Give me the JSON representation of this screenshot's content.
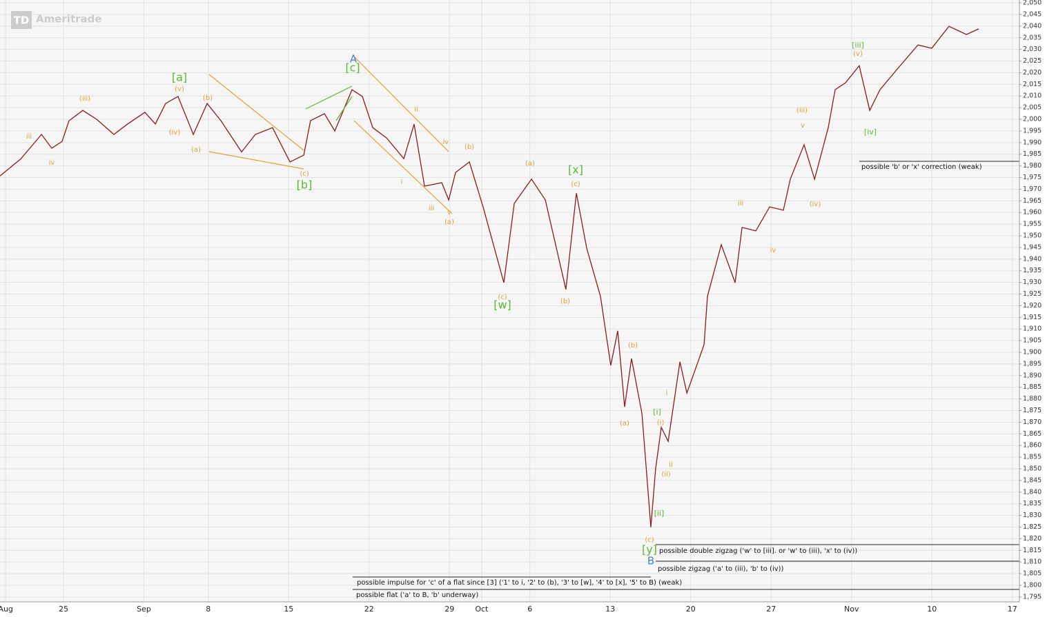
{
  "chart_data": {
    "type": "line",
    "logo": {
      "mark": "TD",
      "name": "Ameritrade"
    },
    "color": "#8b1a1a",
    "x": [
      -3.95,
      -2.66,
      -1.37,
      -0.73,
      -0.09,
      0.34,
      1.2,
      2.06,
      3.13,
      3.99,
      5.06,
      5.71,
      6.35,
      7.12,
      8.07,
      8.93,
      9.79,
      11.07,
      11.93,
      13.0,
      14.08,
      14.94,
      15.36,
      16.22,
      16.87,
      17.94,
      18.58,
      19.23,
      20.09,
      21.16,
      21.8,
      22.45,
      23.52,
      23.95,
      24.38,
      25.24,
      26.09,
      27.38,
      28.03,
      29.1,
      29.96,
      31.24,
      31.89,
      32.53,
      33.39,
      34.03,
      34.46,
      34.89,
      35.32,
      35.97,
      36.52,
      36.82,
      37.17,
      37.6,
      38.33,
      38.76,
      39.83,
      40.04,
      40.9,
      41.76,
      42.19,
      43.05,
      43.91,
      44.76,
      45.19,
      46.05,
      46.7,
      47.55,
      47.98,
      48.63,
      49.48,
      50.13,
      50.77,
      51.85,
      53.13,
      53.99,
      55.06,
      56.14,
      56.91
    ],
    "values": [
      1975.7,
      1983,
      1993.5,
      1987.6,
      1990.5,
      1999.4,
      2003.8,
      2000,
      1993.5,
      1998,
      2003,
      1998,
      2006.8,
      2009.8,
      1993.5,
      2006.8,
      1999.4,
      1986,
      1993.5,
      1996.4,
      1981.7,
      1984.6,
      1999.4,
      2002.4,
      1995,
      2012.7,
      2009.8,
      1996.4,
      1992,
      1983.1,
      1997.9,
      1971.3,
      1972.8,
      1965.4,
      1977.2,
      1981.7,
      1962.4,
      1929.9,
      1963.9,
      1974.3,
      1965.4,
      1927,
      1968.3,
      1944.7,
      1924,
      1894.4,
      1909.2,
      1876.6,
      1897.3,
      1873.7,
      1824.9,
      1850,
      1867.8,
      1861.8,
      1895.9,
      1882.5,
      1903.3,
      1924,
      1946.2,
      1929.9,
      1953.6,
      1952.1,
      1962.4,
      1961,
      1974.3,
      1989.1,
      1974.3,
      1996.4,
      2012.7,
      2015.7,
      2023,
      2003.8,
      2012.7,
      2021.6,
      2031.9,
      2030.5,
      2039.9,
      2036.4,
      2038.8
    ],
    "xlim": [
      -3.95,
      59.44
    ],
    "ylim": [
      1792.9,
      2051.2
    ],
    "grid": true,
    "xticks": [
      {
        "value": -3.6,
        "label": "Aug"
      },
      {
        "value": 0,
        "label": "25"
      },
      {
        "value": 5,
        "label": "Sep"
      },
      {
        "value": 9,
        "label": "8"
      },
      {
        "value": 14,
        "label": "15"
      },
      {
        "value": 19,
        "label": "22"
      },
      {
        "value": 24,
        "label": "29"
      },
      {
        "value": 26,
        "label": "Oct"
      },
      {
        "value": 29,
        "label": "6"
      },
      {
        "value": 34,
        "label": "13"
      },
      {
        "value": 39,
        "label": "20"
      },
      {
        "value": 44,
        "label": "27"
      },
      {
        "value": 49,
        "label": "Nov"
      },
      {
        "value": 54,
        "label": "10"
      },
      {
        "value": 59,
        "label": "17"
      }
    ],
    "yticks": [
      {
        "value": 1795,
        "label": "1,795"
      },
      {
        "value": 1800,
        "label": "1,800"
      },
      {
        "value": 1805,
        "label": "1,805"
      },
      {
        "value": 1810,
        "label": "1,810"
      },
      {
        "value": 1815,
        "label": "1,815"
      },
      {
        "value": 1820,
        "label": "1,820"
      },
      {
        "value": 1825,
        "label": "1,825"
      },
      {
        "value": 1830,
        "label": "1,830"
      },
      {
        "value": 1835,
        "label": "1,835"
      },
      {
        "value": 1840,
        "label": "1,840"
      },
      {
        "value": 1845,
        "label": "1,845"
      },
      {
        "value": 1850,
        "label": "1,850"
      },
      {
        "value": 1855,
        "label": "1,855"
      },
      {
        "value": 1860,
        "label": "1,860"
      },
      {
        "value": 1865,
        "label": "1,865"
      },
      {
        "value": 1870,
        "label": "1,870"
      },
      {
        "value": 1875,
        "label": "1,875"
      },
      {
        "value": 1880,
        "label": "1,880"
      },
      {
        "value": 1885,
        "label": "1,885"
      },
      {
        "value": 1890,
        "label": "1,890"
      },
      {
        "value": 1895,
        "label": "1,895"
      },
      {
        "value": 1900,
        "label": "1,900"
      },
      {
        "value": 1905,
        "label": "1,905"
      },
      {
        "value": 1910,
        "label": "1,910"
      },
      {
        "value": 1915,
        "label": "1,915"
      },
      {
        "value": 1920,
        "label": "1,920"
      },
      {
        "value": 1925,
        "label": "1,925"
      },
      {
        "value": 1930,
        "label": "1,930"
      },
      {
        "value": 1935,
        "label": "1,935"
      },
      {
        "value": 1940,
        "label": "1,940"
      },
      {
        "value": 1945,
        "label": "1,945"
      },
      {
        "value": 1950,
        "label": "1,950"
      },
      {
        "value": 1955,
        "label": "1,955"
      },
      {
        "value": 1960,
        "label": "1,960"
      },
      {
        "value": 1965,
        "label": "1,965"
      },
      {
        "value": 1970,
        "label": "1,970"
      },
      {
        "value": 1975,
        "label": "1,975"
      },
      {
        "value": 1980,
        "label": "1,980"
      },
      {
        "value": 1985,
        "label": "1,985"
      },
      {
        "value": 1990,
        "label": "1,990"
      },
      {
        "value": 1995,
        "label": "1,995"
      },
      {
        "value": 2000,
        "label": "2,000"
      },
      {
        "value": 2005,
        "label": "2,005"
      },
      {
        "value": 2010,
        "label": "2,010"
      },
      {
        "value": 2015,
        "label": "2,015"
      },
      {
        "value": 2020,
        "label": "2,020"
      },
      {
        "value": 2025,
        "label": "2,025"
      },
      {
        "value": 2030,
        "label": "2,030"
      },
      {
        "value": 2035,
        "label": "2,035"
      },
      {
        "value": 2040,
        "label": "2,040"
      },
      {
        "value": 2045,
        "label": "2,045"
      },
      {
        "value": 2050,
        "label": "2,050"
      }
    ],
    "annotations": [
      "(iii)",
      "iii",
      "iv",
      "[a]",
      "(v)",
      "(iv)",
      "(b)",
      "(a)",
      "(c)",
      "[b]",
      "A",
      "[c]",
      "ii",
      "iv",
      "(b)",
      "i",
      "iii",
      "v",
      "(a)",
      "(a)",
      "[x]",
      "(c)",
      "(c)",
      "[w]",
      "(b)",
      "(b)",
      "(a)",
      "[i]",
      "i",
      "(i)",
      "ii",
      "(ii)",
      "[ii]",
      "(c)",
      "[y]",
      "B",
      "iii",
      "iv",
      "(iii)",
      "v",
      "(iv)",
      "[iii]",
      "(v)",
      "[iv]"
    ],
    "notes": [
      "possible 'b' or 'x' correction (weak)",
      "possible double zigzag ('w' to [iii].  or 'w' to (iii), 'x' to (iv))",
      "possible zigzag ('a' to (iii), 'b' to (iv))",
      "possible impulse for 'c' of a flat since [3] ('1' to i, '2' to (b), '3' to [w], '4' to [x], '5' to B) (weak)",
      "possible flat ('a' to B, 'b' underway)"
    ]
  }
}
